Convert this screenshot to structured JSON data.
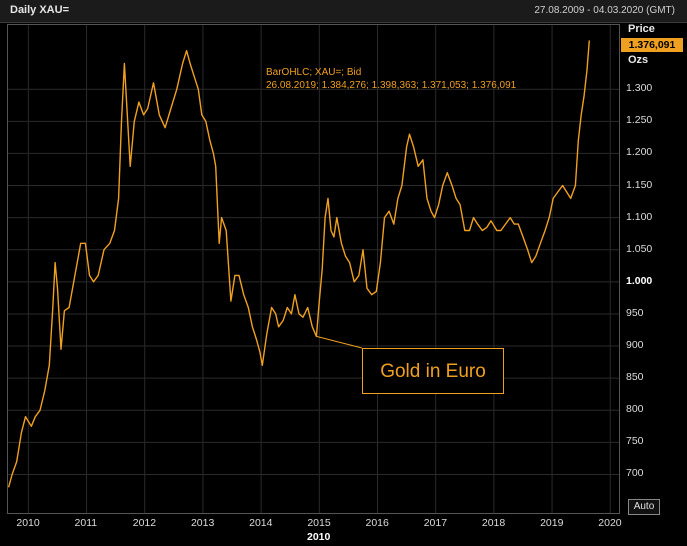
{
  "header": {
    "title": "Daily XAU=",
    "date_range": "27.08.2009 - 04.03.2020 (GMT)"
  },
  "price_panel": {
    "heading": "Price",
    "current_value": "1.376,091",
    "unit": "Ozs",
    "auto_label": "Auto"
  },
  "legend": {
    "line1": "BarOHLC; XAU=; Bid",
    "line2": "26.08.2019; 1.384,276; 1.398,363; 1.371,053; 1.376,091"
  },
  "annotation": {
    "text": "Gold in Euro"
  },
  "colors": {
    "series": "#f0a020",
    "background": "#000000",
    "grid": "#2a2a2a"
  },
  "chart_data": {
    "type": "line",
    "title": "Daily XAU=",
    "ylabel": "Price",
    "ylim": [
      640,
      1400
    ],
    "xlim": [
      2009.65,
      2020.15
    ],
    "grid": true,
    "y_ticks": [
      {
        "value": 1300,
        "label": "1.300"
      },
      {
        "value": 1250,
        "label": "1.250"
      },
      {
        "value": 1200,
        "label": "1.200"
      },
      {
        "value": 1150,
        "label": "1.150"
      },
      {
        "value": 1100,
        "label": "1.100"
      },
      {
        "value": 1050,
        "label": "1.050"
      },
      {
        "value": 1000,
        "label": "1.000"
      },
      {
        "value": 950,
        "label": "950"
      },
      {
        "value": 900,
        "label": "900"
      },
      {
        "value": 850,
        "label": "850"
      },
      {
        "value": 800,
        "label": "800"
      },
      {
        "value": 750,
        "label": "750"
      },
      {
        "value": 700,
        "label": "700"
      }
    ],
    "x_ticks": [
      {
        "value": 2010,
        "label": "2010"
      },
      {
        "value": 2011,
        "label": "2011"
      },
      {
        "value": 2012,
        "label": "2012"
      },
      {
        "value": 2013,
        "label": "2013"
      },
      {
        "value": 2014,
        "label": "2014"
      },
      {
        "value": 2015,
        "label": "2015"
      },
      {
        "value": 2016,
        "label": "2016"
      },
      {
        "value": 2017,
        "label": "2017"
      },
      {
        "value": 2018,
        "label": "2018"
      },
      {
        "value": 2019,
        "label": "2019"
      },
      {
        "value": 2020,
        "label": "2020"
      }
    ],
    "x_sublabel": "2010",
    "series": [
      {
        "points": [
          [
            2009.66,
            680
          ],
          [
            2009.72,
            700
          ],
          [
            2009.8,
            720
          ],
          [
            2009.88,
            765
          ],
          [
            2009.95,
            790
          ],
          [
            2010.05,
            775
          ],
          [
            2010.12,
            790
          ],
          [
            2010.2,
            800
          ],
          [
            2010.28,
            830
          ],
          [
            2010.36,
            870
          ],
          [
            2010.42,
            960
          ],
          [
            2010.46,
            1030
          ],
          [
            2010.5,
            990
          ],
          [
            2010.56,
            895
          ],
          [
            2010.62,
            955
          ],
          [
            2010.7,
            960
          ],
          [
            2010.8,
            1010
          ],
          [
            2010.9,
            1060
          ],
          [
            2010.98,
            1060
          ],
          [
            2011.05,
            1010
          ],
          [
            2011.12,
            1000
          ],
          [
            2011.2,
            1010
          ],
          [
            2011.3,
            1050
          ],
          [
            2011.4,
            1060
          ],
          [
            2011.48,
            1080
          ],
          [
            2011.55,
            1130
          ],
          [
            2011.6,
            1250
          ],
          [
            2011.65,
            1340
          ],
          [
            2011.7,
            1260
          ],
          [
            2011.75,
            1180
          ],
          [
            2011.82,
            1250
          ],
          [
            2011.9,
            1280
          ],
          [
            2011.98,
            1260
          ],
          [
            2012.05,
            1270
          ],
          [
            2012.15,
            1310
          ],
          [
            2012.25,
            1260
          ],
          [
            2012.35,
            1240
          ],
          [
            2012.45,
            1270
          ],
          [
            2012.55,
            1300
          ],
          [
            2012.65,
            1340
          ],
          [
            2012.72,
            1360
          ],
          [
            2012.78,
            1340
          ],
          [
            2012.85,
            1320
          ],
          [
            2012.92,
            1300
          ],
          [
            2012.98,
            1260
          ],
          [
            2013.05,
            1250
          ],
          [
            2013.12,
            1220
          ],
          [
            2013.18,
            1200
          ],
          [
            2013.22,
            1180
          ],
          [
            2013.28,
            1060
          ],
          [
            2013.32,
            1100
          ],
          [
            2013.4,
            1080
          ],
          [
            2013.48,
            970
          ],
          [
            2013.55,
            1010
          ],
          [
            2013.62,
            1010
          ],
          [
            2013.7,
            980
          ],
          [
            2013.78,
            960
          ],
          [
            2013.85,
            930
          ],
          [
            2013.92,
            910
          ],
          [
            2013.98,
            890
          ],
          [
            2014.02,
            870
          ],
          [
            2014.1,
            920
          ],
          [
            2014.18,
            960
          ],
          [
            2014.25,
            950
          ],
          [
            2014.3,
            930
          ],
          [
            2014.38,
            940
          ],
          [
            2014.45,
            960
          ],
          [
            2014.52,
            950
          ],
          [
            2014.58,
            980
          ],
          [
            2014.65,
            950
          ],
          [
            2014.72,
            945
          ],
          [
            2014.8,
            960
          ],
          [
            2014.88,
            930
          ],
          [
            2014.95,
            915
          ],
          [
            2015.0,
            970
          ],
          [
            2015.05,
            1020
          ],
          [
            2015.1,
            1100
          ],
          [
            2015.15,
            1130
          ],
          [
            2015.2,
            1080
          ],
          [
            2015.25,
            1070
          ],
          [
            2015.3,
            1100
          ],
          [
            2015.38,
            1060
          ],
          [
            2015.45,
            1040
          ],
          [
            2015.52,
            1030
          ],
          [
            2015.6,
            1000
          ],
          [
            2015.68,
            1010
          ],
          [
            2015.75,
            1050
          ],
          [
            2015.82,
            990
          ],
          [
            2015.9,
            980
          ],
          [
            2015.98,
            985
          ],
          [
            2016.05,
            1030
          ],
          [
            2016.12,
            1100
          ],
          [
            2016.2,
            1110
          ],
          [
            2016.28,
            1090
          ],
          [
            2016.35,
            1130
          ],
          [
            2016.42,
            1150
          ],
          [
            2016.5,
            1210
          ],
          [
            2016.55,
            1230
          ],
          [
            2016.62,
            1210
          ],
          [
            2016.7,
            1180
          ],
          [
            2016.78,
            1190
          ],
          [
            2016.85,
            1130
          ],
          [
            2016.92,
            1110
          ],
          [
            2016.98,
            1100
          ],
          [
            2017.05,
            1120
          ],
          [
            2017.12,
            1150
          ],
          [
            2017.2,
            1170
          ],
          [
            2017.28,
            1150
          ],
          [
            2017.35,
            1130
          ],
          [
            2017.42,
            1120
          ],
          [
            2017.5,
            1080
          ],
          [
            2017.58,
            1080
          ],
          [
            2017.65,
            1100
          ],
          [
            2017.72,
            1090
          ],
          [
            2017.8,
            1080
          ],
          [
            2017.88,
            1085
          ],
          [
            2017.95,
            1095
          ],
          [
            2018.05,
            1080
          ],
          [
            2018.12,
            1080
          ],
          [
            2018.2,
            1090
          ],
          [
            2018.28,
            1100
          ],
          [
            2018.35,
            1090
          ],
          [
            2018.42,
            1090
          ],
          [
            2018.5,
            1070
          ],
          [
            2018.58,
            1050
          ],
          [
            2018.65,
            1030
          ],
          [
            2018.72,
            1040
          ],
          [
            2018.8,
            1060
          ],
          [
            2018.88,
            1080
          ],
          [
            2018.95,
            1100
          ],
          [
            2019.02,
            1130
          ],
          [
            2019.1,
            1140
          ],
          [
            2019.18,
            1150
          ],
          [
            2019.25,
            1140
          ],
          [
            2019.32,
            1130
          ],
          [
            2019.4,
            1150
          ],
          [
            2019.45,
            1220
          ],
          [
            2019.5,
            1260
          ],
          [
            2019.55,
            1290
          ],
          [
            2019.6,
            1330
          ],
          [
            2019.64,
            1376
          ]
        ]
      }
    ]
  }
}
